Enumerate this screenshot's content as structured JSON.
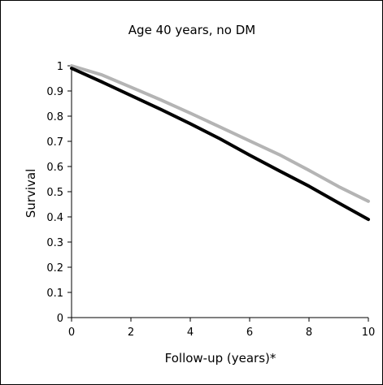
{
  "chart_data": {
    "type": "line",
    "title": "Age 40 years, no DM",
    "xlabel": "Follow-up (years)*",
    "ylabel": "Survival",
    "xlim": [
      0,
      10
    ],
    "ylim": [
      0,
      1
    ],
    "xticks": [
      "0",
      "2",
      "4",
      "6",
      "8",
      "10"
    ],
    "yticks": [
      "0",
      "0.1",
      "0.2",
      "0.3",
      "0.4",
      "0.5",
      "0.6",
      "0.7",
      "0.8",
      "0.9",
      "1"
    ],
    "grid": false,
    "legend": "none",
    "series": [
      {
        "color": "#b4b4b4",
        "x": [
          0,
          1,
          2,
          3,
          4,
          5,
          6,
          7,
          8,
          9,
          10
        ],
        "y": [
          1.0,
          0.965,
          0.915,
          0.865,
          0.812,
          0.757,
          0.702,
          0.647,
          0.585,
          0.52,
          0.462
        ]
      },
      {
        "color": "#000000",
        "x": [
          0,
          1,
          2,
          3,
          4,
          5,
          6,
          7,
          8,
          9,
          10
        ],
        "y": [
          0.99,
          0.937,
          0.882,
          0.827,
          0.77,
          0.71,
          0.645,
          0.583,
          0.522,
          0.455,
          0.39
        ]
      }
    ]
  }
}
